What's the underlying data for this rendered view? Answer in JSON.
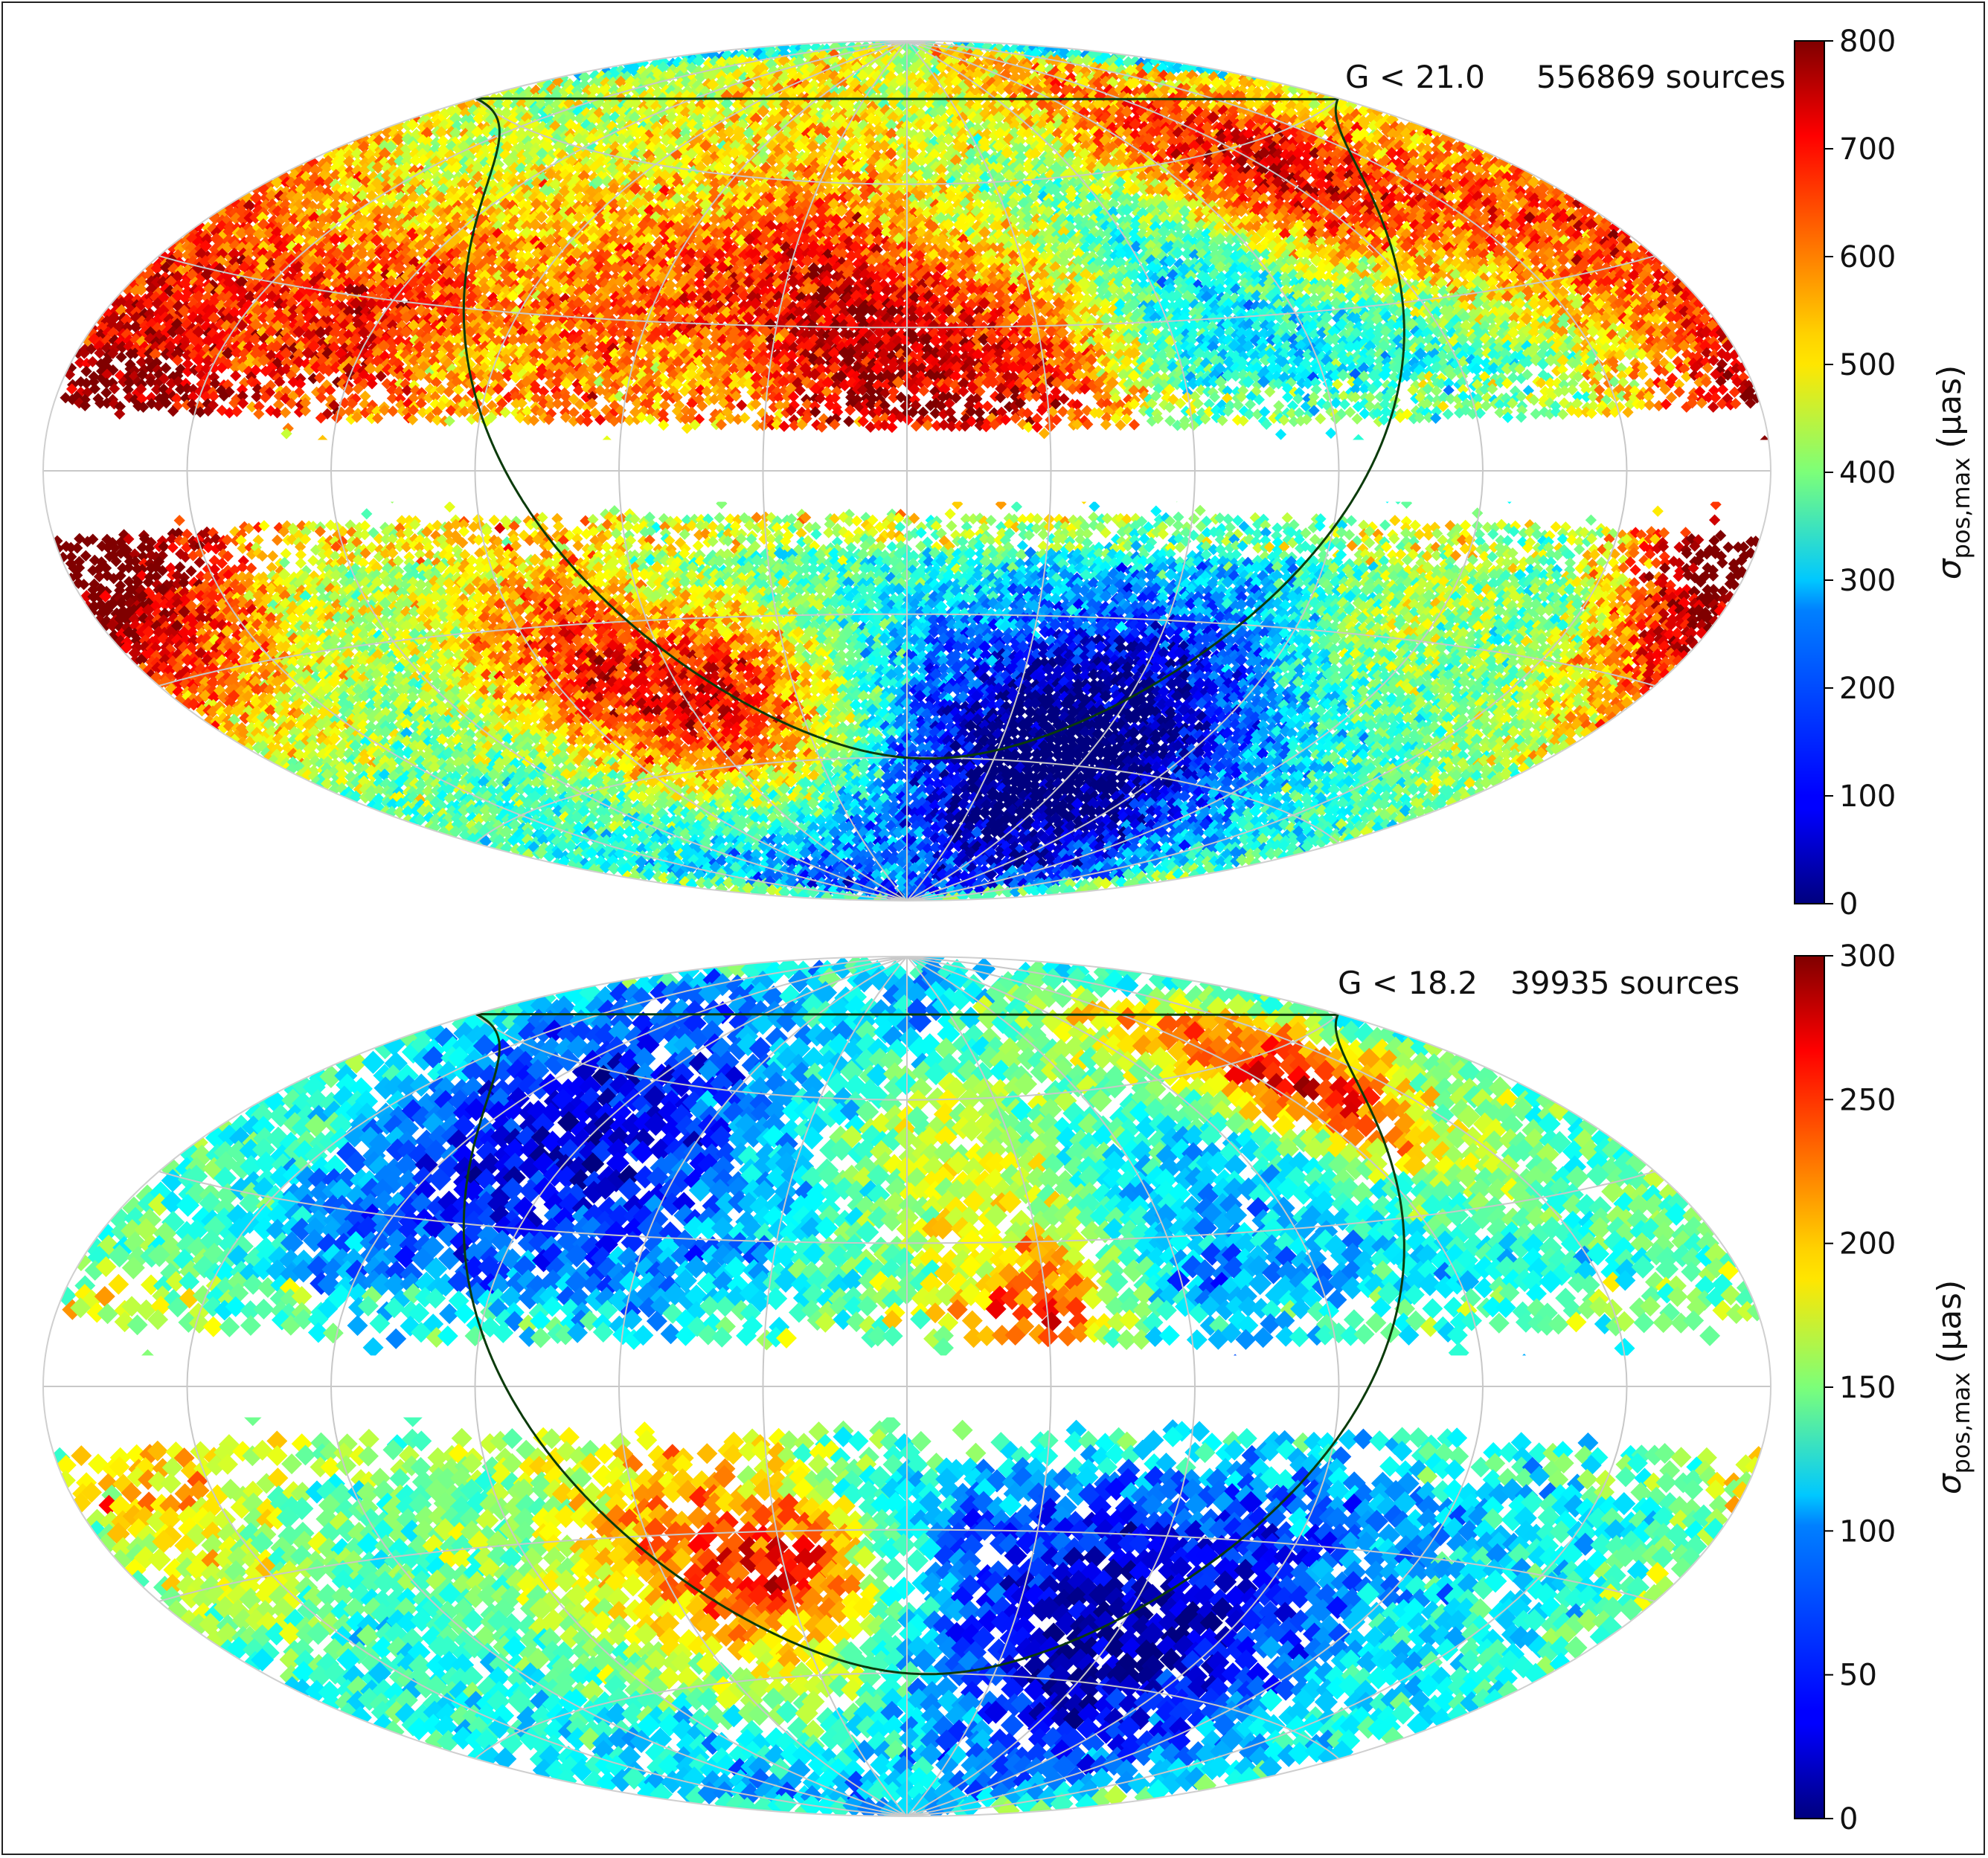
{
  "chart_data": [
    {
      "type": "heatmap",
      "projection": "aitoff",
      "annotation": {
        "magnitude": "G < 21.0",
        "sources": "556869 sources"
      },
      "colorbar": {
        "ticks": [
          "0",
          "100",
          "200",
          "300",
          "400",
          "500",
          "600",
          "700",
          "800"
        ],
        "range": [
          0,
          800
        ],
        "label_symbol": "σ",
        "label_subscript": "pos,max",
        "label_unit": "(μas)",
        "colormap": "jet"
      },
      "masked_band_deg": 9,
      "ecliptic": true,
      "grid": true,
      "features": [
        {
          "lon": -165,
          "lat": 22,
          "rad": 20,
          "amp": 0.35
        },
        {
          "lon": -120,
          "lat": 25,
          "rad": 15,
          "amp": 0.35
        },
        {
          "lon": -70,
          "lat": 22,
          "rad": 18,
          "amp": 0.3
        },
        {
          "lon": -10,
          "lat": 22,
          "rad": 22,
          "amp": 0.38
        },
        {
          "lon": 30,
          "lat": 25,
          "rad": 20,
          "amp": 0.3
        },
        {
          "lon": 110,
          "lat": 55,
          "rad": 15,
          "amp": 0.35
        },
        {
          "lon": 150,
          "lat": 40,
          "rad": 18,
          "amp": 0.25
        },
        {
          "lon": 170,
          "lat": -12,
          "rad": 15,
          "amp": 0.38
        },
        {
          "lon": -165,
          "lat": -18,
          "rad": 20,
          "amp": 0.4
        },
        {
          "lon": -80,
          "lat": -38,
          "rad": 18,
          "amp": 0.35
        },
        {
          "lon": -40,
          "lat": -45,
          "rad": 15,
          "amp": 0.3
        },
        {
          "lon": 110,
          "lat": -25,
          "rad": 15,
          "amp": 0.2
        },
        {
          "lon": -90,
          "lat": 50,
          "rad": 25,
          "amp": 0.15
        },
        {
          "lon": -20,
          "lat": 55,
          "rad": 25,
          "amp": 0.18
        },
        {
          "lon": 40,
          "lat": -60,
          "rad": 25,
          "amp": -0.3
        },
        {
          "lon": 80,
          "lat": -45,
          "rad": 25,
          "amp": -0.22
        },
        {
          "lon": 10,
          "lat": 45,
          "rad": 15,
          "amp": -0.15
        },
        {
          "lon": -60,
          "lat": 60,
          "rad": 12,
          "amp": -0.12
        },
        {
          "lon": 60,
          "lat": 30,
          "rad": 15,
          "amp": -0.12
        }
      ]
    },
    {
      "type": "heatmap",
      "projection": "aitoff",
      "annotation": {
        "magnitude": "G < 18.2",
        "sources": "39935 sources"
      },
      "colorbar": {
        "ticks": [
          "0",
          "50",
          "100",
          "150",
          "200",
          "250",
          "300"
        ],
        "range": [
          0,
          300
        ],
        "label_symbol": "σ",
        "label_subscript": "pos,max",
        "label_unit": "(μas)",
        "colormap": "jet"
      },
      "masked_band_deg": 9,
      "ecliptic": true,
      "grid": true,
      "features": [
        {
          "lon": -80,
          "lat": 60,
          "rad": 25,
          "amp": -0.22
        },
        {
          "lon": -120,
          "lat": 30,
          "rad": 20,
          "amp": -0.15
        },
        {
          "lon": -50,
          "lat": 30,
          "rad": 20,
          "amp": -0.12
        },
        {
          "lon": 40,
          "lat": -50,
          "rad": 30,
          "amp": -0.25
        },
        {
          "lon": 90,
          "lat": -40,
          "rad": 25,
          "amp": -0.22
        },
        {
          "lon": 60,
          "lat": 20,
          "rad": 20,
          "amp": -0.12
        },
        {
          "lon": 130,
          "lat": 55,
          "rad": 12,
          "amp": 0.42
        },
        {
          "lon": 30,
          "lat": 18,
          "rad": 12,
          "amp": 0.32
        },
        {
          "lon": -50,
          "lat": -30,
          "rad": 20,
          "amp": 0.3
        },
        {
          "lon": -25,
          "lat": -35,
          "rad": 12,
          "amp": 0.25
        },
        {
          "lon": -165,
          "lat": -20,
          "rad": 15,
          "amp": 0.25
        },
        {
          "lon": 20,
          "lat": 55,
          "rad": 20,
          "amp": 0.18
        },
        {
          "lon": -10,
          "lat": -60,
          "rad": 20,
          "amp": 0.12
        }
      ]
    }
  ]
}
